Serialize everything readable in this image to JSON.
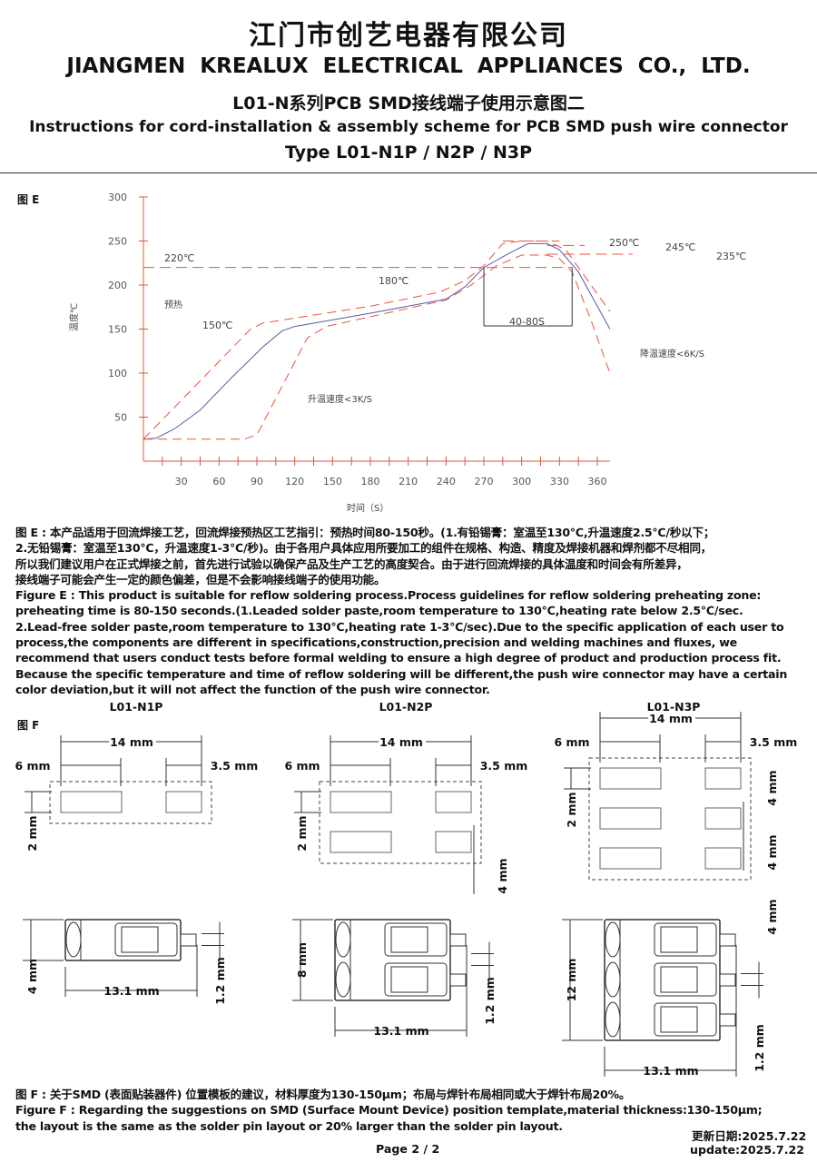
{
  "header": {
    "company_cn": "江门市创艺电器有限公司",
    "company_en": "JIANGMEN  KREALUX  ELECTRICAL  APPLIANCES  CO., LTD.",
    "subtitle_cn": "L01-N系列PCB SMD接线端子使用示意图二",
    "subtitle_en": "Instructions for cord-installation & assembly scheme for PCB SMD push wire connector",
    "type": "Type L01-N1P / N2P / N3P"
  },
  "figure_e": {
    "label": "图 E"
  },
  "chart_data": {
    "type": "line",
    "xlabel": "时间（S）",
    "ylabel": "温度℃",
    "xlim": [
      0,
      370
    ],
    "ylim": [
      0,
      300
    ],
    "xticks": [
      30,
      60,
      90,
      120,
      150,
      180,
      210,
      240,
      270,
      300,
      330,
      360
    ],
    "yticks": [
      50,
      100,
      150,
      200,
      250,
      300
    ],
    "series": [
      {
        "style": "solid",
        "color": "#5a5aa8",
        "x": [
          0,
          10,
          25,
          45,
          70,
          95,
          110,
          120,
          180,
          240,
          255,
          270,
          290,
          305,
          320,
          330,
          345,
          370
        ],
        "y": [
          25,
          26,
          37,
          58,
          95,
          130,
          148,
          153,
          168,
          184,
          198,
          220,
          236,
          247,
          247,
          240,
          215,
          150
        ]
      },
      {
        "style": "dashed",
        "color": "#e8543c",
        "x": [
          0,
          85,
          95,
          100,
          180,
          235,
          255,
          270,
          285,
          300,
          320,
          335,
          350,
          370
        ],
        "y": [
          25,
          150,
          157,
          158,
          176,
          192,
          205,
          222,
          247,
          250,
          250,
          240,
          210,
          170
        ]
      },
      {
        "style": "dashed",
        "color": "#e8543c",
        "x": [
          0,
          80,
          90,
          110,
          130,
          145,
          180,
          240,
          260,
          280,
          300,
          320,
          330,
          340,
          355,
          370
        ],
        "y": [
          25,
          25,
          30,
          85,
          140,
          153,
          164,
          183,
          200,
          222,
          234,
          234,
          230,
          215,
          160,
          100
        ]
      }
    ],
    "reference_lines": [
      {
        "y": 220,
        "label": "220℃"
      },
      {
        "y": 250,
        "label": "250℃"
      },
      {
        "y": 245,
        "label": "245℃"
      },
      {
        "y": 235,
        "label": "235℃"
      }
    ],
    "annotations": [
      "预热",
      "150℃",
      "180℃",
      "升温速度<3K/S",
      "降温速度<6K/S",
      "40-80S"
    ]
  },
  "para_e": [
    "图 E : 本产品适用于回流焊接工艺，回流焊接预热区工艺指引：预热时间80-150秒。(1.有铅锡膏：室温至130℃,升温速度2.5℃/秒以下；",
    "2.无铅锡膏：室温至130℃，升温速度1-3℃/秒)。由于各用户具体应用所要加工的组件在规格、构造、精度及焊接机器和焊剂都不尽相同，",
    "所以我们建议用户在正式焊接之前，首先进行试验以确保产品及生产工艺的高度契合。由于进行回流焊接的具体温度和时间会有所差异，",
    "接线端子可能会产生一定的颜色偏差，但是不会影响接线端子的使用功能。",
    "Figure E : This product is suitable for reflow soldering process.Process guidelines for reflow soldering preheating zone:",
    "preheating time is 80-150 seconds.(1.Leaded solder paste,room temperature to 130℃,heating rate below 2.5℃/sec.",
    "2.Lead-free solder paste,room temperature to 130℃,heating rate 1-3℃/sec).Due to the specific application of each user to",
    "process,the components are different in specifications,construction,precision and welding machines and fluxes, we",
    "recommend that users conduct tests before formal welding to ensure a high degree of product and production process fit.",
    "Because the specific temperature and time of reflow soldering will be different,the push wire connector may have a certain",
    "color deviation,but it will not affect the function of the push wire connector."
  ],
  "figure_f": {
    "label": "图 F",
    "models": [
      "L01-N1P",
      "L01-N2P",
      "L01-N3P"
    ],
    "dims": {
      "w14": "14 mm",
      "w6": "6 mm",
      "w35": "3.5 mm",
      "h2": "2 mm",
      "h4": "4 mm",
      "h8": "8 mm",
      "h12": "12 mm",
      "l131": "13.1 mm",
      "p12": "1.2 mm"
    }
  },
  "para_f": [
    "图 F : 关于SMD (表面贴装器件) 位置模板的建议，材料厚度为130-150μm；布局与焊针布局相同或大于焊针布局20%。",
    "Figure F : Regarding the suggestions on SMD (Surface Mount Device) position template,material thickness:130-150μm;",
    "the layout is the same as the solder pin layout or 20% larger than the solder pin layout."
  ],
  "footer": {
    "page": "Page 2 / 2",
    "update_cn": "更新日期:2025.7.22",
    "update_en": "update:2025.7.22"
  }
}
